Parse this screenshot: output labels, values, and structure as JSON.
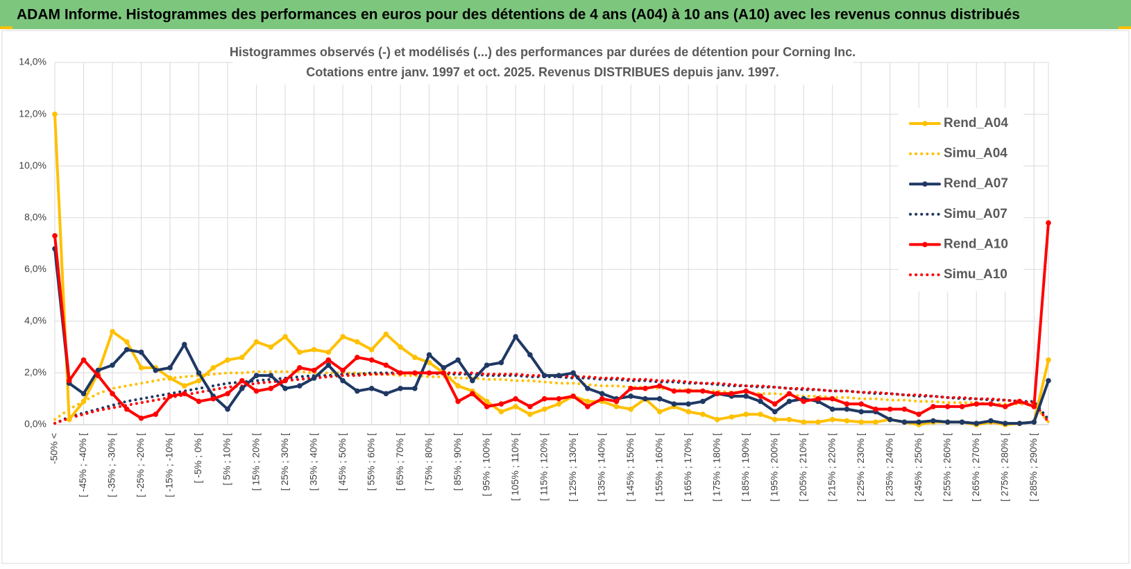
{
  "header": "ADAM Informe. Histogrammes des performances en euros pour des détentions de 4 ans (A04) à 10 ans (A10) avec les revenus connus distribués",
  "chart_data": {
    "type": "line",
    "title": "Histogrammes observés (-) et modélisés (...) des performances par durées de détention pour Corning Inc.",
    "subtitle": "Cotations entre janv. 1997 et oct. 2025.  Revenus DISTRIBUES depuis janv. 1997.",
    "categories": [
      "-50% <",
      null,
      "[ -45% ; -40% [",
      null,
      "[ -35% ; -30% [",
      null,
      "[ -25% ; -20% [",
      null,
      "[ -15% ; -10% [",
      null,
      "[ -5% ; 0% [",
      null,
      "[ 5% ; 10% [",
      null,
      "[ 15% ; 20% [",
      null,
      "[ 25% ; 30% [",
      null,
      "[ 35% ; 40% [",
      null,
      "[ 45% ; 50% [",
      null,
      "[ 55% ; 60% [",
      null,
      "[ 65% ; 70% [",
      null,
      "[ 75% ; 80% [",
      null,
      "[ 85% ; 90% [",
      null,
      "[ 95% ; 100% [",
      null,
      "[ 105% ; 110% [",
      null,
      "[ 115% ; 120% [",
      null,
      "[ 125% ; 130% [",
      null,
      "[ 135% ; 140% [",
      null,
      "[ 145% ; 150% [",
      null,
      "[ 155% ; 160% [",
      null,
      "[ 165% ; 170% [",
      null,
      "[ 175% ; 180% [",
      null,
      "[ 185% ; 190% [",
      null,
      "[ 195% ; 200% [",
      null,
      "[ 205% ; 210% [",
      null,
      "[ 215% ; 220% [",
      null,
      "[ 225% ; 230% [",
      null,
      "[ 235% ; 240% [",
      null,
      "[ 245% ; 250% [",
      null,
      "[ 255% ; 260% [",
      null,
      "[ 265% ; 270% [",
      null,
      "[ 275% ; 280% [",
      null,
      "[ 285% ; 290% [",
      null
    ],
    "series": [
      {
        "name": "Rend_A04",
        "color": "#ffc000",
        "line_style": "solid",
        "markers": true,
        "values": [
          12.0,
          0.2,
          0.9,
          2.0,
          3.6,
          3.2,
          2.2,
          2.2,
          1.8,
          1.5,
          1.7,
          2.2,
          2.5,
          2.6,
          3.2,
          3.0,
          3.4,
          2.8,
          2.9,
          2.8,
          3.4,
          3.2,
          2.9,
          3.5,
          3.0,
          2.6,
          2.4,
          2.0,
          1.5,
          1.3,
          0.9,
          0.5,
          0.7,
          0.4,
          0.6,
          0.8,
          1.1,
          0.9,
          0.9,
          0.7,
          0.6,
          1.0,
          0.5,
          0.7,
          0.5,
          0.4,
          0.2,
          0.3,
          0.4,
          0.4,
          0.2,
          0.2,
          0.1,
          0.1,
          0.2,
          0.15,
          0.1,
          0.1,
          0.2,
          0.1,
          0.0,
          0.1,
          0.1,
          0.1,
          0.0,
          0.1,
          0.0,
          0.05,
          0.1,
          2.5
        ]
      },
      {
        "name": "Simu_A04",
        "color": "#ffc000",
        "line_style": "dotted",
        "markers": false,
        "values": [
          0.2,
          0.6,
          0.9,
          1.2,
          1.4,
          1.5,
          1.6,
          1.7,
          1.8,
          1.85,
          1.9,
          1.95,
          2.0,
          2.0,
          2.05,
          2.05,
          2.05,
          2.05,
          2.0,
          2.0,
          2.0,
          2.0,
          1.95,
          1.95,
          1.9,
          1.9,
          1.85,
          1.85,
          1.8,
          1.8,
          1.75,
          1.75,
          1.7,
          1.7,
          1.65,
          1.6,
          1.6,
          1.55,
          1.5,
          1.5,
          1.45,
          1.45,
          1.4,
          1.35,
          1.35,
          1.3,
          1.3,
          1.25,
          1.25,
          1.2,
          1.2,
          1.15,
          1.1,
          1.1,
          1.05,
          1.05,
          1.0,
          1.0,
          0.95,
          0.95,
          0.9,
          0.9,
          0.85,
          0.85,
          0.85,
          0.8,
          0.8,
          0.8,
          0.75,
          0.1
        ]
      },
      {
        "name": "Rend_A07",
        "color": "#1f3864",
        "line_style": "solid",
        "markers": true,
        "values": [
          6.8,
          1.6,
          1.2,
          2.1,
          2.3,
          2.9,
          2.8,
          2.1,
          2.2,
          3.1,
          2.0,
          1.1,
          0.6,
          1.4,
          1.9,
          1.9,
          1.4,
          1.5,
          1.8,
          2.3,
          1.7,
          1.3,
          1.4,
          1.2,
          1.4,
          1.4,
          2.7,
          2.2,
          2.5,
          1.7,
          2.3,
          2.4,
          3.4,
          2.7,
          1.9,
          1.9,
          2.0,
          1.4,
          1.2,
          1.0,
          1.1,
          1.0,
          1.0,
          0.8,
          0.8,
          0.9,
          1.2,
          1.1,
          1.1,
          0.9,
          0.5,
          0.9,
          1.0,
          0.9,
          0.6,
          0.6,
          0.5,
          0.5,
          0.2,
          0.1,
          0.1,
          0.15,
          0.1,
          0.1,
          0.05,
          0.15,
          0.05,
          0.05,
          0.1,
          1.7
        ]
      },
      {
        "name": "Simu_A07",
        "color": "#1f3864",
        "line_style": "dotted",
        "markers": false,
        "values": [
          0.05,
          0.3,
          0.45,
          0.6,
          0.75,
          0.9,
          1.0,
          1.1,
          1.2,
          1.3,
          1.4,
          1.5,
          1.6,
          1.65,
          1.7,
          1.75,
          1.8,
          1.85,
          1.9,
          1.9,
          1.95,
          1.95,
          2.0,
          2.0,
          2.0,
          2.0,
          2.0,
          1.95,
          1.95,
          1.95,
          1.9,
          1.9,
          1.9,
          1.85,
          1.85,
          1.85,
          1.8,
          1.8,
          1.75,
          1.75,
          1.7,
          1.7,
          1.65,
          1.65,
          1.6,
          1.6,
          1.55,
          1.5,
          1.5,
          1.45,
          1.45,
          1.4,
          1.35,
          1.35,
          1.3,
          1.3,
          1.25,
          1.2,
          1.2,
          1.15,
          1.1,
          1.1,
          1.05,
          1.0,
          1.0,
          0.95,
          0.95,
          0.9,
          0.9,
          0.2
        ]
      },
      {
        "name": "Rend_A10",
        "color": "#ff0000",
        "line_style": "solid",
        "markers": true,
        "values": [
          7.3,
          1.7,
          2.5,
          1.9,
          1.2,
          0.6,
          0.25,
          0.4,
          1.1,
          1.2,
          0.9,
          1.0,
          1.2,
          1.7,
          1.3,
          1.4,
          1.7,
          2.2,
          2.1,
          2.5,
          2.1,
          2.6,
          2.5,
          2.3,
          2.0,
          2.0,
          2.0,
          2.0,
          0.9,
          1.2,
          0.7,
          0.8,
          1.0,
          0.7,
          1.0,
          1.0,
          1.1,
          0.7,
          1.0,
          0.9,
          1.4,
          1.4,
          1.5,
          1.3,
          1.3,
          1.3,
          1.2,
          1.2,
          1.3,
          1.1,
          0.8,
          1.2,
          0.9,
          1.0,
          1.0,
          0.8,
          0.8,
          0.6,
          0.6,
          0.6,
          0.4,
          0.7,
          0.7,
          0.7,
          0.8,
          0.8,
          0.7,
          0.9,
          0.7,
          7.8
        ]
      },
      {
        "name": "Simu_A10",
        "color": "#ff0000",
        "line_style": "dotted",
        "markers": false,
        "values": [
          0.05,
          0.25,
          0.4,
          0.55,
          0.65,
          0.75,
          0.85,
          0.95,
          1.05,
          1.15,
          1.25,
          1.35,
          1.45,
          1.5,
          1.6,
          1.65,
          1.7,
          1.75,
          1.8,
          1.85,
          1.9,
          1.9,
          1.95,
          1.95,
          2.0,
          2.0,
          2.0,
          2.0,
          2.0,
          2.0,
          1.95,
          1.95,
          1.95,
          1.9,
          1.9,
          1.9,
          1.85,
          1.85,
          1.8,
          1.8,
          1.75,
          1.75,
          1.7,
          1.7,
          1.65,
          1.6,
          1.6,
          1.55,
          1.5,
          1.5,
          1.45,
          1.4,
          1.4,
          1.35,
          1.3,
          1.3,
          1.25,
          1.25,
          1.2,
          1.15,
          1.15,
          1.1,
          1.05,
          1.05,
          1.0,
          1.0,
          0.95,
          0.9,
          0.85,
          0.1
        ]
      }
    ],
    "ylim": [
      0,
      14
    ],
    "yticks": [
      {
        "value": 0,
        "label": "0,0%"
      },
      {
        "value": 2,
        "label": "2,0%"
      },
      {
        "value": 4,
        "label": "4,0%"
      },
      {
        "value": 6,
        "label": "6,0%"
      },
      {
        "value": 8,
        "label": "8,0%"
      },
      {
        "value": 10,
        "label": "10,0%"
      },
      {
        "value": 12,
        "label": "12,0%"
      },
      {
        "value": 14,
        "label": "14,0%"
      }
    ],
    "grid": true,
    "legend": "right"
  }
}
